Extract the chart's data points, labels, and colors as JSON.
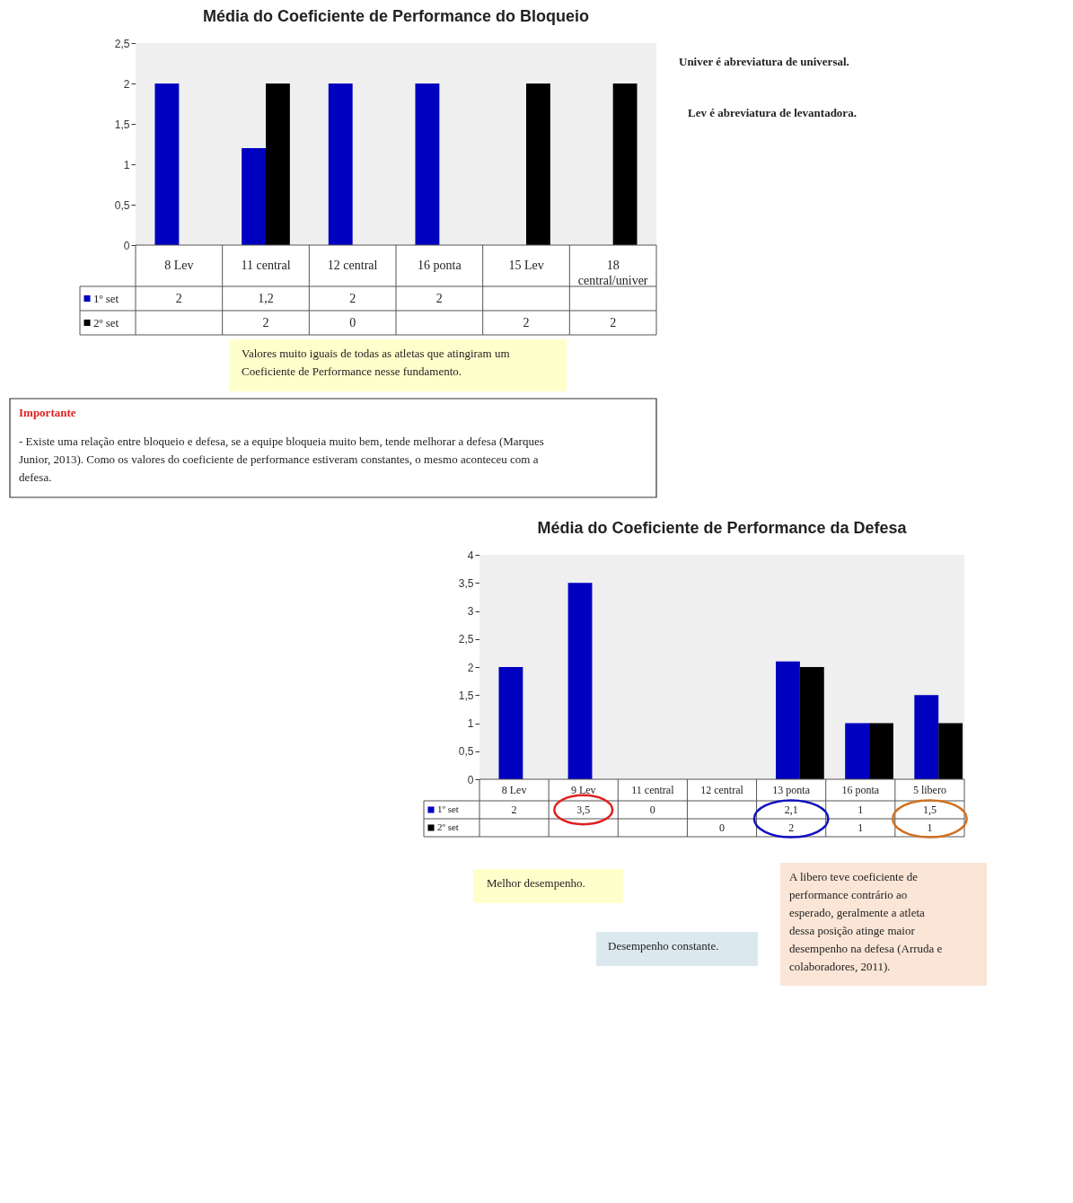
{
  "chart_data": [
    {
      "type": "bar",
      "title": "Média do Coeficiente de Performance do Bloqueio",
      "categories": [
        "8 Lev",
        "11 central",
        "12 central",
        "16 ponta",
        "15 Lev",
        "18 central/univer"
      ],
      "series": [
        {
          "name": "1º set",
          "color": "#0000c0",
          "values": [
            2,
            1.2,
            2,
            2,
            null,
            null
          ],
          "value_labels": [
            "2",
            "1,2",
            "2",
            "2",
            null,
            null
          ]
        },
        {
          "name": "2º set",
          "color": "#000000",
          "values": [
            null,
            2,
            0,
            null,
            2,
            2
          ],
          "value_labels": [
            null,
            "2",
            "0",
            null,
            "2",
            "2"
          ]
        }
      ],
      "ylim": [
        0,
        2.5
      ],
      "yticks": [
        0,
        {
          "value": 0.5,
          "label": "0,5"
        },
        1,
        {
          "value": 1.5,
          "label": "1,5"
        },
        2,
        {
          "value": 2.5,
          "label": "2,5"
        }
      ],
      "grid": false,
      "legend": "bottom",
      "annotations": [
        "Univer é abreviatura de universal.",
        "Lev é abreviatura de levantadora.",
        "Valores muito iguais de todas as atletas que atingiram um Coeficiente de Performance nesse fundamento.",
        "Importante",
        "- Existe uma relação entre bloqueio e defesa, se a equipe bloqueia muito bem, tende melhorar a defesa (Marques Junior, 2013). Como os valores do coeficiente de performance estiveram constantes, o mesmo aconteceu com a defesa."
      ]
    },
    {
      "type": "bar",
      "title": "Média do Coeficiente de Performance da Defesa",
      "categories": [
        "8 Lev",
        "9 Lev",
        "11 central",
        "12 central",
        "13 ponta",
        "16 ponta",
        "5 libero"
      ],
      "series": [
        {
          "name": "1º set",
          "color": "#0000c0",
          "values": [
            2,
            3.5,
            0,
            null,
            2.1,
            1,
            1.5
          ],
          "value_labels": [
            "2",
            "3,5",
            "0",
            null,
            "2,1",
            "1",
            "1,5"
          ]
        },
        {
          "name": "2º set",
          "color": "#000000",
          "values": [
            null,
            null,
            null,
            0,
            2,
            1,
            1
          ],
          "value_labels": [
            null,
            null,
            null,
            "0",
            "2",
            "1",
            "1"
          ]
        }
      ],
      "ylim": [
        0,
        4
      ],
      "yticks": [
        0,
        {
          "value": 0.5,
          "label": "0,5"
        },
        1,
        {
          "value": 1.5,
          "label": "1,5"
        },
        2,
        {
          "value": 2.5,
          "label": "2,5"
        },
        3,
        {
          "value": 3.5,
          "label": "3,5"
        },
        4
      ],
      "grid": false,
      "legend": "bottom",
      "annotations": [
        "Melhor desempenho.",
        "Desempenho constante.",
        "A libero teve coeficiente de performance contrário ao esperado, geralmente a atleta dessa posição atinge maior desempenho na defesa (Arruda e colaboradores, 2011)."
      ]
    }
  ]
}
